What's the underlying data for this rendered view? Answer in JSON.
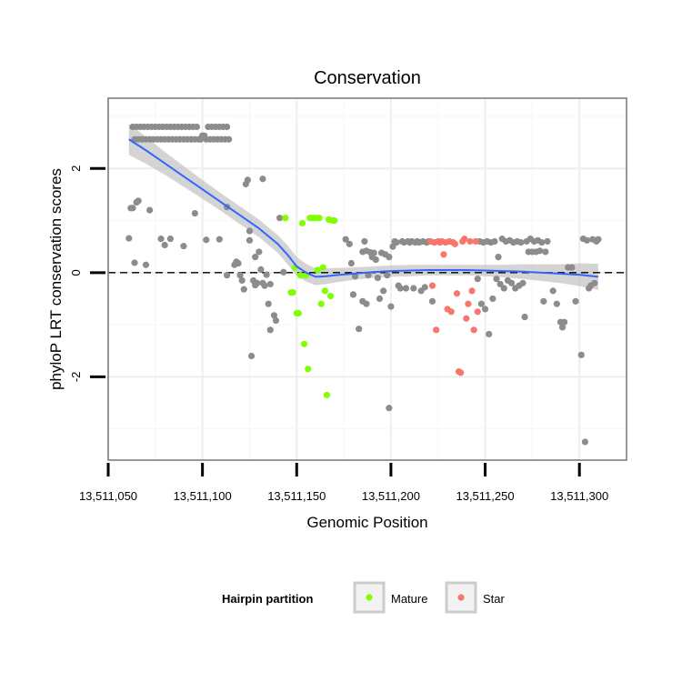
{
  "chart_data": {
    "type": "scatter",
    "title": "Conservation",
    "xlabel": "Genomic Position",
    "ylabel": "phyloP LRT conservation scores",
    "xlim": [
      13511050,
      13511325
    ],
    "ylim": [
      -3.6,
      3.35
    ],
    "x_ticks": [
      13511050,
      13511100,
      13511150,
      13511200,
      13511250,
      13511300
    ],
    "x_tick_labels": [
      "13,511,050",
      "13,511,100",
      "13,511,150",
      "13,511,200",
      "13,511,250",
      "13,511,300"
    ],
    "y_ticks": [
      -2,
      0,
      2
    ],
    "y_tick_labels": [
      "-2",
      "0",
      "2"
    ],
    "reference_line": 0,
    "legend": {
      "title": "Hairpin partition",
      "position": "bottom",
      "entries": [
        {
          "label": "Mature",
          "color": "#7FFF00"
        },
        {
          "label": "Star",
          "color": "#F8766D"
        }
      ]
    },
    "colors": {
      "other": "#8c8c8c",
      "mature": "#7FFF00",
      "star": "#F8766D",
      "smooth": "#3366FF",
      "ribbon": "#bdbdbd"
    },
    "series": [
      {
        "name": "Other",
        "points": [
          [
            13511063,
            2.8
          ],
          [
            13511064,
            2.56
          ],
          [
            13511065,
            2.8
          ],
          [
            13511066,
            2.56
          ],
          [
            13511067,
            2.8
          ],
          [
            13511068,
            2.56
          ],
          [
            13511069,
            2.8
          ],
          [
            13511070,
            2.56
          ],
          [
            13511071,
            2.8
          ],
          [
            13511072,
            2.56
          ],
          [
            13511073,
            2.8
          ],
          [
            13511074,
            2.56
          ],
          [
            13511075,
            2.8
          ],
          [
            13511076,
            2.56
          ],
          [
            13511077,
            2.8
          ],
          [
            13511078,
            2.56
          ],
          [
            13511079,
            2.8
          ],
          [
            13511080,
            2.56
          ],
          [
            13511081,
            2.8
          ],
          [
            13511082,
            2.56
          ],
          [
            13511083,
            2.8
          ],
          [
            13511084,
            2.56
          ],
          [
            13511085,
            2.8
          ],
          [
            13511086,
            2.56
          ],
          [
            13511087,
            2.8
          ],
          [
            13511088,
            2.56
          ],
          [
            13511089,
            2.8
          ],
          [
            13511090,
            2.56
          ],
          [
            13511091,
            2.8
          ],
          [
            13511092,
            2.56
          ],
          [
            13511093,
            2.8
          ],
          [
            13511094,
            2.56
          ],
          [
            13511095,
            2.8
          ],
          [
            13511096,
            2.56
          ],
          [
            13511097,
            2.8
          ],
          [
            13511098,
            2.56
          ],
          [
            13511099,
            2.56
          ],
          [
            13511100,
            2.63
          ],
          [
            13511101,
            2.63
          ],
          [
            13511102,
            2.56
          ],
          [
            13511103,
            2.8
          ],
          [
            13511104,
            2.56
          ],
          [
            13511105,
            2.8
          ],
          [
            13511106,
            2.56
          ],
          [
            13511107,
            2.8
          ],
          [
            13511108,
            2.56
          ],
          [
            13511109,
            2.8
          ],
          [
            13511110,
            2.56
          ],
          [
            13511111,
            2.8
          ],
          [
            13511112,
            2.56
          ],
          [
            13511113,
            2.8
          ],
          [
            13511114,
            2.56
          ],
          [
            13511061,
            0.66
          ],
          [
            13511062,
            1.24
          ],
          [
            13511063,
            1.24
          ],
          [
            13511064,
            0.19
          ],
          [
            13511065,
            1.35
          ],
          [
            13511066,
            1.38
          ],
          [
            13511070,
            0.15
          ],
          [
            13511072,
            1.2
          ],
          [
            13511078,
            0.65
          ],
          [
            13511080,
            0.53
          ],
          [
            13511083,
            0.65
          ],
          [
            13511090,
            0.51
          ],
          [
            13511096,
            1.14
          ],
          [
            13511102,
            0.63
          ],
          [
            13511109,
            0.64
          ],
          [
            13511113,
            1.26
          ],
          [
            13511117,
            0.15
          ],
          [
            13511118,
            0.21
          ],
          [
            13511119,
            0.18
          ],
          [
            13511120,
            -0.05
          ],
          [
            13511121,
            -0.15
          ],
          [
            13511122,
            -0.32
          ],
          [
            13511123,
            1.7
          ],
          [
            13511124,
            1.78
          ],
          [
            13511125,
            0.62
          ],
          [
            13511126,
            -1.6
          ],
          [
            13511127,
            -0.15
          ],
          [
            13511128,
            -0.24
          ],
          [
            13511129,
            -0.2
          ],
          [
            13511130,
            0.4
          ],
          [
            13511131,
            0.06
          ],
          [
            13511132,
            -0.2
          ],
          [
            13511133,
            -0.25
          ],
          [
            13511134,
            -0.04
          ],
          [
            13511135,
            -0.6
          ],
          [
            13511136,
            -0.22
          ],
          [
            13511138,
            -0.82
          ],
          [
            13511139,
            -0.92
          ],
          [
            13511141,
            1.05
          ],
          [
            13511143,
            0.01
          ],
          [
            13511136,
            -1.1
          ],
          [
            13511125,
            0.8
          ],
          [
            13511132,
            1.8
          ],
          [
            13511128,
            0.3
          ],
          [
            13511113,
            -0.05
          ],
          [
            13511176,
            0.64
          ],
          [
            13511178,
            0.55
          ],
          [
            13511179,
            0.18
          ],
          [
            13511180,
            -0.42
          ],
          [
            13511181,
            -0.07
          ],
          [
            13511183,
            -1.08
          ],
          [
            13511185,
            0.4
          ],
          [
            13511186,
            0.6
          ],
          [
            13511187,
            0.42
          ],
          [
            13511188,
            -0.05
          ],
          [
            13511189,
            0.39
          ],
          [
            13511190,
            0.3
          ],
          [
            13511191,
            0.38
          ],
          [
            13511192,
            0.25
          ],
          [
            13511193,
            -0.1
          ],
          [
            13511194,
            -0.5
          ],
          [
            13511195,
            0.38
          ],
          [
            13511196,
            -0.35
          ],
          [
            13511197,
            0.35
          ],
          [
            13511198,
            -0.05
          ],
          [
            13511199,
            0.3
          ],
          [
            13511200,
            -0.65
          ],
          [
            13511201,
            0.5
          ],
          [
            13511202,
            0.6
          ],
          [
            13511203,
            0.58
          ],
          [
            13511204,
            -0.25
          ],
          [
            13511205,
            -0.3
          ],
          [
            13511206,
            0.6
          ],
          [
            13511207,
            0.58
          ],
          [
            13511208,
            -0.3
          ],
          [
            13511209,
            0.6
          ],
          [
            13511210,
            0.58
          ],
          [
            13511211,
            0.6
          ],
          [
            13511212,
            -0.3
          ],
          [
            13511213,
            0.58
          ],
          [
            13511214,
            0.6
          ],
          [
            13511215,
            0.58
          ],
          [
            13511216,
            -0.35
          ],
          [
            13511217,
            0.6
          ],
          [
            13511218,
            -0.28
          ],
          [
            13511219,
            0.58
          ],
          [
            13511220,
            0.6
          ],
          [
            13511222,
            -0.55
          ],
          [
            13511199,
            -2.6
          ],
          [
            13511185,
            -0.55
          ],
          [
            13511187,
            -0.6
          ],
          [
            13511246,
            -0.12
          ],
          [
            13511247,
            0.6
          ],
          [
            13511248,
            -0.6
          ],
          [
            13511249,
            0.58
          ],
          [
            13511250,
            -0.7
          ],
          [
            13511251,
            0.6
          ],
          [
            13511252,
            -1.18
          ],
          [
            13511253,
            0.58
          ],
          [
            13511254,
            -0.5
          ],
          [
            13511255,
            0.6
          ],
          [
            13511256,
            -0.12
          ],
          [
            13511257,
            0.3
          ],
          [
            13511258,
            -0.22
          ],
          [
            13511259,
            0.65
          ],
          [
            13511260,
            -0.3
          ],
          [
            13511261,
            0.6
          ],
          [
            13511262,
            -0.15
          ],
          [
            13511263,
            0.62
          ],
          [
            13511264,
            -0.2
          ],
          [
            13511265,
            0.58
          ],
          [
            13511266,
            -0.3
          ],
          [
            13511267,
            0.6
          ],
          [
            13511268,
            -0.25
          ],
          [
            13511269,
            0.58
          ],
          [
            13511270,
            -0.2
          ],
          [
            13511271,
            -0.85
          ],
          [
            13511272,
            0.6
          ],
          [
            13511273,
            0.4
          ],
          [
            13511274,
            0.65
          ],
          [
            13511275,
            0.4
          ],
          [
            13511276,
            0.6
          ],
          [
            13511277,
            0.4
          ],
          [
            13511278,
            0.62
          ],
          [
            13511279,
            0.42
          ],
          [
            13511280,
            0.58
          ],
          [
            13511281,
            -0.55
          ],
          [
            13511282,
            0.4
          ],
          [
            13511283,
            0.6
          ],
          [
            13511286,
            -0.35
          ],
          [
            13511288,
            -0.6
          ],
          [
            13511290,
            -0.95
          ],
          [
            13511291,
            -1.05
          ],
          [
            13511292,
            -0.95
          ],
          [
            13511294,
            0.1
          ],
          [
            13511296,
            0.1
          ],
          [
            13511298,
            -0.55
          ],
          [
            13511301,
            -1.58
          ],
          [
            13511302,
            0.65
          ],
          [
            13511303,
            -3.25
          ],
          [
            13511304,
            0.62
          ],
          [
            13511305,
            -0.3
          ],
          [
            13511306,
            -0.25
          ],
          [
            13511307,
            0.64
          ],
          [
            13511308,
            -0.2
          ],
          [
            13511309,
            0.6
          ],
          [
            13511310,
            0.64
          ]
        ]
      },
      {
        "name": "Mature",
        "points": [
          [
            13511144,
            1.05
          ],
          [
            13511147,
            -0.38
          ],
          [
            13511148,
            -0.38
          ],
          [
            13511149,
            0.1
          ],
          [
            13511150,
            -0.78
          ],
          [
            13511151,
            -0.78
          ],
          [
            13511152,
            -0.05
          ],
          [
            13511153,
            0.95
          ],
          [
            13511154,
            -1.37
          ],
          [
            13511155,
            -0.05
          ],
          [
            13511156,
            -1.85
          ],
          [
            13511157,
            1.05
          ],
          [
            13511158,
            1.05
          ],
          [
            13511159,
            1.05
          ],
          [
            13511160,
            1.05
          ],
          [
            13511161,
            0.05
          ],
          [
            13511162,
            1.05
          ],
          [
            13511163,
            -0.6
          ],
          [
            13511164,
            0.1
          ],
          [
            13511165,
            -0.35
          ],
          [
            13511166,
            -2.35
          ],
          [
            13511167,
            1.02
          ],
          [
            13511168,
            -0.45
          ],
          [
            13511169,
            1.0
          ],
          [
            13511170,
            1.0
          ]
        ]
      },
      {
        "name": "Star",
        "points": [
          [
            13511221,
            0.6
          ],
          [
            13511222,
            -0.25
          ],
          [
            13511223,
            0.58
          ],
          [
            13511224,
            -1.1
          ],
          [
            13511225,
            0.6
          ],
          [
            13511226,
            0.58
          ],
          [
            13511227,
            0.6
          ],
          [
            13511228,
            0.35
          ],
          [
            13511229,
            0.58
          ],
          [
            13511230,
            -0.7
          ],
          [
            13511231,
            0.6
          ],
          [
            13511232,
            -0.75
          ],
          [
            13511233,
            0.58
          ],
          [
            13511234,
            0.55
          ],
          [
            13511235,
            -0.4
          ],
          [
            13511236,
            -1.9
          ],
          [
            13511237,
            -1.92
          ],
          [
            13511238,
            0.6
          ],
          [
            13511239,
            0.65
          ],
          [
            13511240,
            -0.88
          ],
          [
            13511241,
            -0.6
          ],
          [
            13511242,
            0.6
          ],
          [
            13511243,
            -0.35
          ],
          [
            13511244,
            -1.1
          ],
          [
            13511245,
            0.6
          ],
          [
            13511246,
            -0.75
          ]
        ]
      }
    ],
    "smooth": {
      "x": [
        13511061,
        13511070,
        13511080,
        13511090,
        13511100,
        13511110,
        13511120,
        13511130,
        13511140,
        13511145,
        13511150,
        13511155,
        13511160,
        13511165,
        13511170,
        13511180,
        13511190,
        13511200,
        13511210,
        13511220,
        13511230,
        13511240,
        13511250,
        13511260,
        13511270,
        13511280,
        13511290,
        13511300,
        13511310
      ],
      "y": [
        2.56,
        2.35,
        2.1,
        1.85,
        1.6,
        1.35,
        1.1,
        0.85,
        0.55,
        0.35,
        0.12,
        0.0,
        -0.08,
        -0.07,
        -0.05,
        -0.02,
        0.01,
        0.03,
        0.04,
        0.05,
        0.05,
        0.05,
        0.04,
        0.03,
        0.02,
        0.0,
        -0.02,
        -0.04,
        -0.08
      ],
      "se": [
        0.3,
        0.26,
        0.22,
        0.2,
        0.18,
        0.17,
        0.17,
        0.17,
        0.17,
        0.18,
        0.18,
        0.17,
        0.16,
        0.15,
        0.14,
        0.12,
        0.11,
        0.11,
        0.11,
        0.1,
        0.1,
        0.1,
        0.11,
        0.12,
        0.14,
        0.16,
        0.18,
        0.22,
        0.25
      ]
    }
  }
}
